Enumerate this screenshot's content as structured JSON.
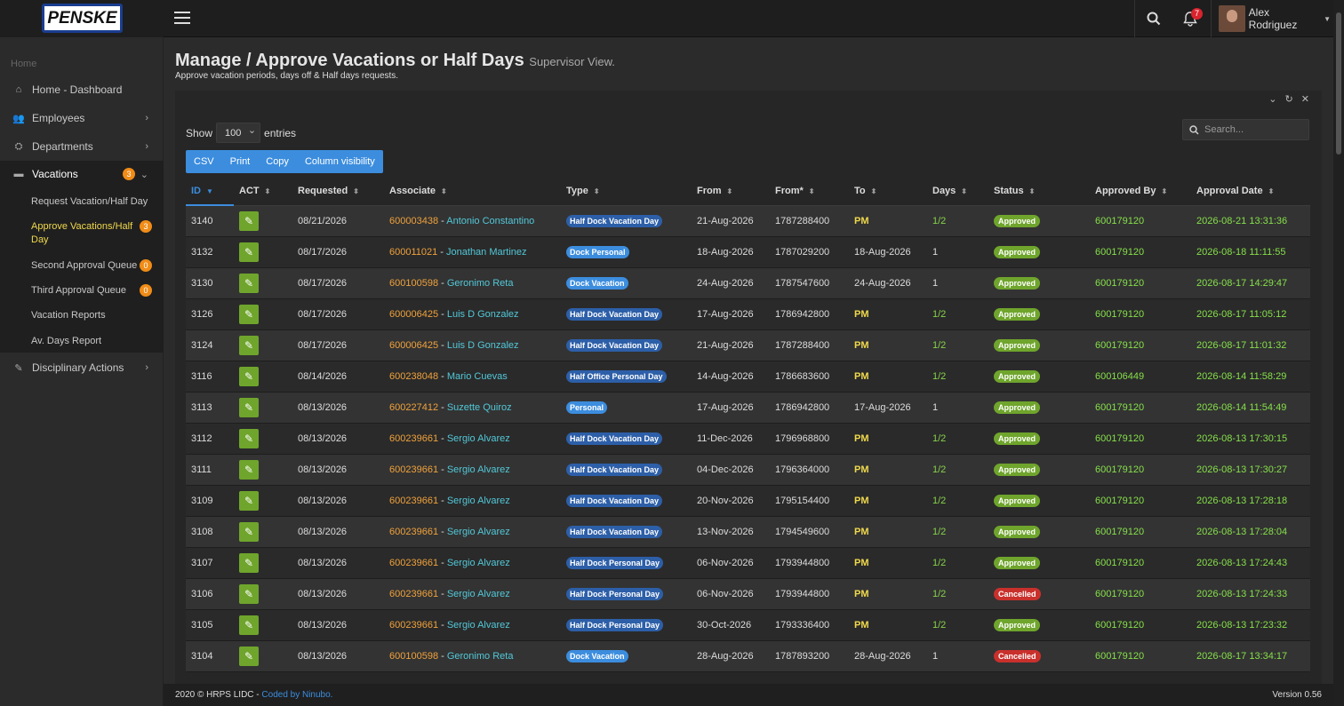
{
  "brand": {
    "logo_text": "PENSKE"
  },
  "topbar": {
    "notification_count": "7",
    "user_name": "Alex Rodriguez"
  },
  "sidebar": {
    "home_label": "Home",
    "items": [
      {
        "label": "Home - Dashboard"
      },
      {
        "label": "Employees"
      },
      {
        "label": "Departments"
      },
      {
        "label": "Vacations",
        "badge": "3"
      },
      {
        "label": "Disciplinary Actions"
      }
    ],
    "vacation_sub": [
      {
        "label": "Request Vacation/Half Day"
      },
      {
        "label": "Approve Vacations/Half Day",
        "badge": "3"
      },
      {
        "label": "Second Approval Queue",
        "badge": "0"
      },
      {
        "label": "Third Approval Queue",
        "badge": "0"
      },
      {
        "label": "Vacation Reports"
      },
      {
        "label": "Av. Days Report"
      }
    ]
  },
  "page": {
    "title": "Manage / Approve Vacations or Half Days",
    "title_small": "Supervisor View.",
    "subtitle": "Approve vacation periods, days off & Half days requests."
  },
  "table_controls": {
    "show_label": "Show",
    "entries_label": "entries",
    "page_length": "100",
    "search_placeholder": "Search...",
    "buttons": [
      "CSV",
      "Print",
      "Copy",
      "Column visibility"
    ]
  },
  "table": {
    "columns": [
      "ID",
      "ACT",
      "Requested",
      "Associate",
      "Type",
      "From",
      "From*",
      "To",
      "Days",
      "Status",
      "Approved By",
      "Approval Date"
    ],
    "rows": [
      {
        "id": "3140",
        "requested": "08/21/2026",
        "code": "600003438",
        "name": "Antonio Constantino",
        "type": "Half Dock Vacation Day",
        "from": "21-Aug-2026",
        "from_ts": "1787288400",
        "to": "PM",
        "days": "1/2",
        "status": "Approved",
        "approved_by": "600179120",
        "approval_date": "2026-08-21 13:31:36"
      },
      {
        "id": "3132",
        "requested": "08/17/2026",
        "code": "600011021",
        "name": "Jonathan Martinez",
        "type": "Dock Personal",
        "from": "18-Aug-2026",
        "from_ts": "1787029200",
        "to": "18-Aug-2026",
        "days": "1",
        "status": "Approved",
        "approved_by": "600179120",
        "approval_date": "2026-08-18 11:11:55"
      },
      {
        "id": "3130",
        "requested": "08/17/2026",
        "code": "600100598",
        "name": "Geronimo Reta",
        "type": "Dock Vacation",
        "from": "24-Aug-2026",
        "from_ts": "1787547600",
        "to": "24-Aug-2026",
        "days": "1",
        "status": "Approved",
        "approved_by": "600179120",
        "approval_date": "2026-08-17 14:29:47"
      },
      {
        "id": "3126",
        "requested": "08/17/2026",
        "code": "600006425",
        "name": "Luis D Gonzalez",
        "type": "Half Dock Vacation Day",
        "from": "17-Aug-2026",
        "from_ts": "1786942800",
        "to": "PM",
        "days": "1/2",
        "status": "Approved",
        "approved_by": "600179120",
        "approval_date": "2026-08-17 11:05:12"
      },
      {
        "id": "3124",
        "requested": "08/17/2026",
        "code": "600006425",
        "name": "Luis D Gonzalez",
        "type": "Half Dock Vacation Day",
        "from": "21-Aug-2026",
        "from_ts": "1787288400",
        "to": "PM",
        "days": "1/2",
        "status": "Approved",
        "approved_by": "600179120",
        "approval_date": "2026-08-17 11:01:32"
      },
      {
        "id": "3116",
        "requested": "08/14/2026",
        "code": "600238048",
        "name": "Mario Cuevas",
        "type": "Half Office Personal Day",
        "from": "14-Aug-2026",
        "from_ts": "1786683600",
        "to": "PM",
        "days": "1/2",
        "status": "Approved",
        "approved_by": "600106449",
        "approval_date": "2026-08-14 11:58:29"
      },
      {
        "id": "3113",
        "requested": "08/13/2026",
        "code": "600227412",
        "name": "Suzette Quiroz",
        "type": "Personal",
        "from": "17-Aug-2026",
        "from_ts": "1786942800",
        "to": "17-Aug-2026",
        "days": "1",
        "status": "Approved",
        "approved_by": "600179120",
        "approval_date": "2026-08-14 11:54:49"
      },
      {
        "id": "3112",
        "requested": "08/13/2026",
        "code": "600239661",
        "name": "Sergio Alvarez",
        "type": "Half Dock Vacation Day",
        "from": "11-Dec-2026",
        "from_ts": "1796968800",
        "to": "PM",
        "days": "1/2",
        "status": "Approved",
        "approved_by": "600179120",
        "approval_date": "2026-08-13 17:30:15"
      },
      {
        "id": "3111",
        "requested": "08/13/2026",
        "code": "600239661",
        "name": "Sergio Alvarez",
        "type": "Half Dock Vacation Day",
        "from": "04-Dec-2026",
        "from_ts": "1796364000",
        "to": "PM",
        "days": "1/2",
        "status": "Approved",
        "approved_by": "600179120",
        "approval_date": "2026-08-13 17:30:27"
      },
      {
        "id": "3109",
        "requested": "08/13/2026",
        "code": "600239661",
        "name": "Sergio Alvarez",
        "type": "Half Dock Vacation Day",
        "from": "20-Nov-2026",
        "from_ts": "1795154400",
        "to": "PM",
        "days": "1/2",
        "status": "Approved",
        "approved_by": "600179120",
        "approval_date": "2026-08-13 17:28:18"
      },
      {
        "id": "3108",
        "requested": "08/13/2026",
        "code": "600239661",
        "name": "Sergio Alvarez",
        "type": "Half Dock Vacation Day",
        "from": "13-Nov-2026",
        "from_ts": "1794549600",
        "to": "PM",
        "days": "1/2",
        "status": "Approved",
        "approved_by": "600179120",
        "approval_date": "2026-08-13 17:28:04"
      },
      {
        "id": "3107",
        "requested": "08/13/2026",
        "code": "600239661",
        "name": "Sergio Alvarez",
        "type": "Half Dock Personal Day",
        "from": "06-Nov-2026",
        "from_ts": "1793944800",
        "to": "PM",
        "days": "1/2",
        "status": "Approved",
        "approved_by": "600179120",
        "approval_date": "2026-08-13 17:24:43"
      },
      {
        "id": "3106",
        "requested": "08/13/2026",
        "code": "600239661",
        "name": "Sergio Alvarez",
        "type": "Half Dock Personal Day",
        "from": "06-Nov-2026",
        "from_ts": "1793944800",
        "to": "PM",
        "days": "1/2",
        "status": "Cancelled",
        "approved_by": "600179120",
        "approval_date": "2026-08-13 17:24:33"
      },
      {
        "id": "3105",
        "requested": "08/13/2026",
        "code": "600239661",
        "name": "Sergio Alvarez",
        "type": "Half Dock Personal Day",
        "from": "30-Oct-2026",
        "from_ts": "1793336400",
        "to": "PM",
        "days": "1/2",
        "status": "Approved",
        "approved_by": "600179120",
        "approval_date": "2026-08-13 17:23:32"
      },
      {
        "id": "3104",
        "requested": "08/13/2026",
        "code": "600100598",
        "name": "Geronimo Reta",
        "type": "Dock Vacation",
        "from": "28-Aug-2026",
        "from_ts": "1787893200",
        "to": "28-Aug-2026",
        "days": "1",
        "status": "Cancelled",
        "approved_by": "600179120",
        "approval_date": "2026-08-17 13:34:17"
      }
    ]
  },
  "colors": {
    "type_half": "#2d5fa8",
    "type_full": "#3c8dde",
    "approved": "#6fa52c",
    "cancelled": "#c9302c"
  },
  "footer": {
    "copyright": "2020 © HRPS LIDC - ",
    "coded_by": "Coded by Ninubo.",
    "version": "Version 0.56"
  }
}
